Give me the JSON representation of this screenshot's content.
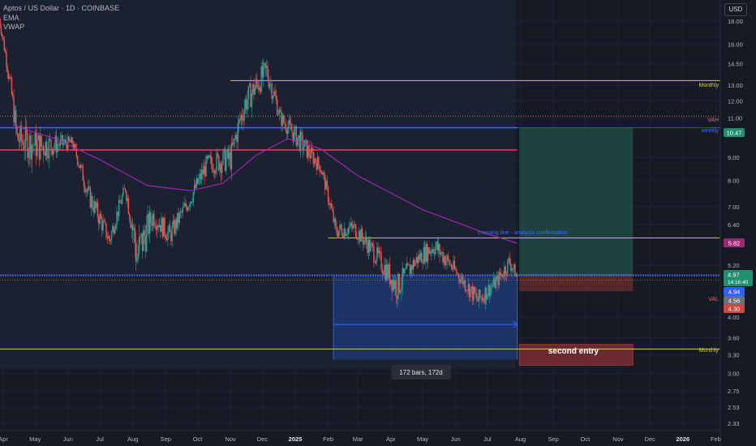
{
  "header": {
    "symbol": "Aptos / US Dollar · 1D · COINBASE",
    "indicator1": "EMA",
    "indicator2": "VWAP",
    "currency": "USD"
  },
  "chart_data": {
    "type": "candlestick",
    "y_scale": "log",
    "y_ticks": [
      "18.00",
      "16.00",
      "14.50",
      "13.00",
      "12.00",
      "11.00",
      "9.00",
      "8.00",
      "7.00",
      "6.40",
      "5.20",
      "4.00",
      "3.60",
      "3.30",
      "3.00",
      "2.75",
      "2.53",
      "2.33"
    ],
    "x_ticks": [
      "Apr",
      "May",
      "Jun",
      "Jul",
      "Aug",
      "Sep",
      "Oct",
      "Nov",
      "Dec",
      "2025",
      "Feb",
      "Mar",
      "Apr",
      "May",
      "Jun",
      "Jul",
      "Aug",
      "Sep",
      "Oct",
      "Nov",
      "Dec",
      "2026",
      "Feb"
    ],
    "price_anchors": [
      {
        "date": "2024-03-28",
        "low": 17.8,
        "high": 18.6
      },
      {
        "date": "2024-04-14",
        "low": 9.0,
        "high": 10.8
      },
      {
        "date": "2024-05-05",
        "low": 8.7,
        "high": 10.4
      },
      {
        "date": "2024-06-05",
        "low": 9.4,
        "high": 10.0
      },
      {
        "date": "2024-06-20",
        "low": 7.0,
        "high": 7.9
      },
      {
        "date": "2024-07-10",
        "low": 5.6,
        "high": 6.2
      },
      {
        "date": "2024-07-25",
        "low": 7.4,
        "high": 8.0
      },
      {
        "date": "2024-08-05",
        "low": 4.6,
        "high": 6.3
      },
      {
        "date": "2024-08-20",
        "low": 6.3,
        "high": 7.1
      },
      {
        "date": "2024-09-05",
        "low": 5.7,
        "high": 6.4
      },
      {
        "date": "2024-09-25",
        "low": 7.0,
        "high": 7.7
      },
      {
        "date": "2024-10-10",
        "low": 8.2,
        "high": 9.2
      },
      {
        "date": "2024-11-01",
        "low": 8.3,
        "high": 9.6
      },
      {
        "date": "2024-11-15",
        "low": 11.0,
        "high": 12.8
      },
      {
        "date": "2024-12-05",
        "low": 13.0,
        "high": 15.0
      },
      {
        "date": "2024-12-18",
        "low": 10.5,
        "high": 11.5
      },
      {
        "date": "2025-01-05",
        "low": 9.2,
        "high": 10.4
      },
      {
        "date": "2025-01-25",
        "low": 8.2,
        "high": 8.9
      },
      {
        "date": "2025-02-08",
        "low": 5.9,
        "high": 6.5
      },
      {
        "date": "2025-02-25",
        "low": 6.0,
        "high": 6.6
      },
      {
        "date": "2025-03-15",
        "low": 5.3,
        "high": 5.9
      },
      {
        "date": "2025-04-07",
        "low": 4.3,
        "high": 5.0
      },
      {
        "date": "2025-04-25",
        "low": 5.1,
        "high": 5.6
      },
      {
        "date": "2025-05-12",
        "low": 5.4,
        "high": 6.1
      },
      {
        "date": "2025-06-05",
        "low": 4.7,
        "high": 5.1
      },
      {
        "date": "2025-06-22",
        "low": 4.1,
        "high": 4.6
      },
      {
        "date": "2025-07-10",
        "low": 4.6,
        "high": 5.0
      },
      {
        "date": "2025-07-22",
        "low": 5.0,
        "high": 5.6
      },
      {
        "date": "2025-07-29",
        "low": 4.8,
        "high": 5.0
      }
    ],
    "ema_anchors": [
      {
        "date": "2024-04-10",
        "value": 10.6
      },
      {
        "date": "2024-05-20",
        "value": 9.9
      },
      {
        "date": "2024-07-01",
        "value": 8.9
      },
      {
        "date": "2024-08-15",
        "value": 7.8
      },
      {
        "date": "2024-09-25",
        "value": 7.6
      },
      {
        "date": "2024-10-25",
        "value": 7.9
      },
      {
        "date": "2024-11-25",
        "value": 9.1
      },
      {
        "date": "2024-12-25",
        "value": 9.9
      },
      {
        "date": "2025-01-25",
        "value": 9.4
      },
      {
        "date": "2025-03-01",
        "value": 8.2
      },
      {
        "date": "2025-05-01",
        "value": 6.9
      },
      {
        "date": "2025-07-01",
        "value": 6.1
      },
      {
        "date": "2025-07-29",
        "value": 5.82
      }
    ],
    "horizontal_levels": [
      {
        "name": "Monthly",
        "price": 13.3,
        "color": "#d6c94a"
      },
      {
        "name": "VAH",
        "price": 11.1,
        "color": "#c46b5c"
      },
      {
        "name": "weekly",
        "price": 10.47,
        "color": "#3d6bff"
      },
      {
        "name": "red level",
        "price": 9.35,
        "color": "#f04b5c"
      },
      {
        "name": "crossing line - analysis confirmation",
        "price": 5.98,
        "color": "#d6c94a"
      },
      {
        "name": "VAL",
        "price": 4.82,
        "color": "#c46b5c"
      },
      {
        "name": "blue level",
        "price": 4.94,
        "color": "#3d6bff"
      },
      {
        "name": "Monthly",
        "price": 3.4,
        "color": "#d6c94a"
      }
    ],
    "labels": {
      "monthly_top": "Monthly",
      "vah": "VAH",
      "weekly": "weekly",
      "crossing": "crossing line - analysis confirmation",
      "val": "VAL",
      "monthly_bottom": "Monthly",
      "second_entry": "second entry",
      "bars_range": "172 bars, 172d"
    },
    "price_tags": {
      "weekly": "10.47",
      "ema": "5.82",
      "last": "4.97",
      "countdown": "14:16:40",
      "blue": "4.94",
      "entry": "4.56",
      "stop": "4.30"
    },
    "colors": {
      "background": "#161a25",
      "up": "#26a69a",
      "down": "#ef5350",
      "ema": "#9c27b0",
      "profit_zone": "#1f4a46",
      "loss_zone": "#5c2a2e",
      "range_box": "#1e3a78"
    }
  }
}
